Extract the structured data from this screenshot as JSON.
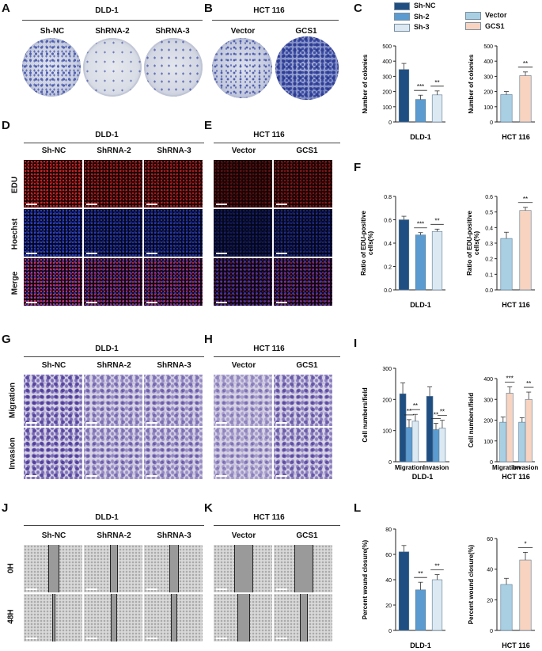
{
  "panel_letters": [
    "A",
    "B",
    "C",
    "D",
    "E",
    "F",
    "G",
    "H",
    "I",
    "J",
    "K",
    "L"
  ],
  "cell_lines": {
    "dld": "DLD-1",
    "hct": "HCT 116"
  },
  "groups_dld": [
    "Sh-NC",
    "ShRNA-2",
    "ShRNA-3"
  ],
  "groups_hct": [
    "Vector",
    "GCS1"
  ],
  "rows_D": [
    "EDU",
    "Hoechst",
    "Merge"
  ],
  "rows_G": [
    "Migration",
    "Invasion"
  ],
  "rows_J": [
    "0H",
    "48H"
  ],
  "legend": {
    "dld": [
      "Sh-NC",
      "Sh-2",
      "Sh-3"
    ],
    "hct": [
      "Vector",
      "GCS1"
    ]
  },
  "colors": {
    "shnc": "#1f4e82",
    "sh2": "#5b9bd0",
    "sh3": "#dce9f3",
    "vector": "#a9cfe3",
    "gcs1": "#f7d3c0",
    "edu": "#c0201f",
    "hoechst": "#1d2f8c",
    "crystal": "#4b3c9a"
  },
  "chart_data": [
    {
      "type": "bar",
      "panel": "C",
      "ylabel": "Number of colonies",
      "xlabel": "DLD-1",
      "ylim": [
        0,
        500
      ],
      "yticks": [
        0,
        100,
        200,
        300,
        400,
        500
      ],
      "categories": [
        "Sh-NC",
        "Sh-2",
        "Sh-3"
      ],
      "values": [
        345,
        148,
        178
      ],
      "errors": [
        40,
        28,
        26
      ],
      "sig": [
        "***",
        "**"
      ]
    },
    {
      "type": "bar",
      "panel": "C2",
      "ylabel": "Number of colonies",
      "xlabel": "HCT 116",
      "ylim": [
        0,
        500
      ],
      "yticks": [
        0,
        100,
        200,
        300,
        400,
        500
      ],
      "categories": [
        "Vector",
        "GCS1"
      ],
      "values": [
        180,
        305
      ],
      "errors": [
        20,
        24
      ],
      "sig": [
        "**"
      ]
    },
    {
      "type": "bar",
      "panel": "F",
      "ylabel": "Ratio of EDU-positive cells(%)",
      "xlabel": "DLD-1",
      "ylim": [
        0,
        0.8
      ],
      "yticks": [
        0.0,
        0.2,
        0.4,
        0.6,
        0.8
      ],
      "categories": [
        "Sh-NC",
        "Sh-2",
        "Sh-3"
      ],
      "values": [
        0.6,
        0.47,
        0.5
      ],
      "errors": [
        0.03,
        0.02,
        0.02
      ],
      "sig": [
        "***",
        "**"
      ]
    },
    {
      "type": "bar",
      "panel": "F2",
      "ylabel": "Ratio of EDU-positive cells(%)",
      "xlabel": "HCT 116",
      "ylim": [
        0,
        0.6
      ],
      "yticks": [
        0.0,
        0.1,
        0.2,
        0.3,
        0.4,
        0.5,
        0.6
      ],
      "categories": [
        "Vector",
        "GCS1"
      ],
      "values": [
        0.33,
        0.51
      ],
      "errors": [
        0.04,
        0.02
      ],
      "sig": [
        "**"
      ]
    },
    {
      "type": "bar",
      "panel": "I",
      "ylabel": "Cell numbers/field",
      "xlabel": "DLD-1",
      "ylim": [
        0,
        300
      ],
      "yticks": [
        0,
        100,
        200,
        300
      ],
      "categories": [
        "Migration",
        "Invasion"
      ],
      "series": [
        {
          "name": "Sh-NC",
          "values": [
            218,
            210
          ],
          "errors": [
            35,
            30
          ]
        },
        {
          "name": "Sh-2",
          "values": [
            110,
            103
          ],
          "errors": [
            25,
            20
          ]
        },
        {
          "name": "Sh-3",
          "values": [
            130,
            108
          ],
          "errors": [
            22,
            25
          ]
        }
      ],
      "sig": [
        "**",
        "**",
        "**",
        "**"
      ]
    },
    {
      "type": "bar",
      "panel": "I2",
      "ylabel": "Cell numbers/field",
      "xlabel": "HCT 116",
      "ylim": [
        0,
        400
      ],
      "yticks": [
        0,
        100,
        200,
        300,
        400
      ],
      "categories": [
        "Migration",
        "Invasion"
      ],
      "series": [
        {
          "name": "Vector",
          "values": [
            190,
            190
          ],
          "errors": [
            25,
            22
          ]
        },
        {
          "name": "GCS1",
          "values": [
            330,
            300
          ],
          "errors": [
            30,
            35
          ]
        }
      ],
      "sig": [
        "***",
        "**"
      ]
    },
    {
      "type": "bar",
      "panel": "L",
      "ylabel": "Percent wound closure(%)",
      "xlabel": "DLD-1",
      "ylim": [
        0,
        80
      ],
      "yticks": [
        0,
        20,
        40,
        60,
        80
      ],
      "categories": [
        "Sh-NC",
        "Sh-2",
        "Sh-3"
      ],
      "values": [
        62,
        32,
        40
      ],
      "errors": [
        5,
        6,
        4
      ],
      "sig": [
        "**",
        "**"
      ]
    },
    {
      "type": "bar",
      "panel": "L2",
      "ylabel": "Percent wound closure(%)",
      "xlabel": "HCT 116",
      "ylim": [
        0,
        60
      ],
      "yticks": [
        0,
        20,
        40,
        60
      ],
      "categories": [
        "Vector",
        "GCS1"
      ],
      "values": [
        30,
        46
      ],
      "errors": [
        4,
        5
      ],
      "sig": [
        "*"
      ]
    }
  ]
}
